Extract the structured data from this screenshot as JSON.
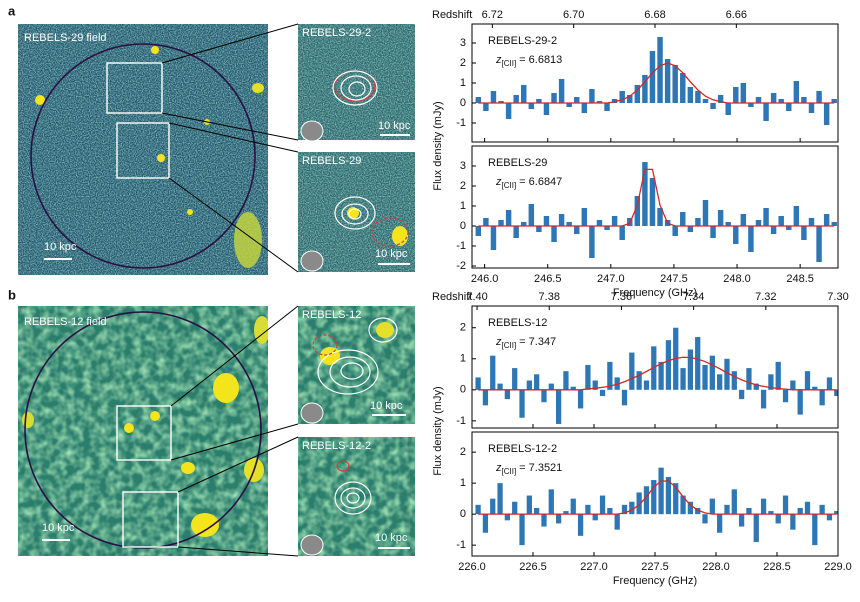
{
  "panels": [
    {
      "label": "a",
      "field": "REBELS-29 field",
      "scale": "10 kpc",
      "insets": [
        {
          "name": "REBELS-29-2",
          "scale": "10 kpc"
        },
        {
          "name": "REBELS-29",
          "scale": "10 kpc"
        }
      ]
    },
    {
      "label": "b",
      "field": "REBELS-12 field",
      "scale": "10 kpc",
      "insets": [
        {
          "name": "REBELS-12",
          "scale": "10 kpc"
        },
        {
          "name": "REBELS-12-2",
          "scale": "10 kpc"
        }
      ]
    }
  ],
  "chart_data": [
    {
      "type": "bar",
      "annotation": "REBELS-29-2",
      "redshift_label": {
        "symbol": "z",
        "subscript": "[CII]",
        "value": "= 6.6813"
      },
      "ylabel": "Flux density (mJy)",
      "x2label": "Redshift",
      "x": [
        245.95,
        246.01,
        246.07,
        246.13,
        246.19,
        246.25,
        246.31,
        246.37,
        246.43,
        246.49,
        246.55,
        246.61,
        246.67,
        246.73,
        246.79,
        246.85,
        246.91,
        246.97,
        247.03,
        247.09,
        247.15,
        247.21,
        247.27,
        247.33,
        247.39,
        247.45,
        247.51,
        247.57,
        247.63,
        247.69,
        247.75,
        247.81,
        247.87,
        247.93,
        247.99,
        248.05,
        248.11,
        248.17,
        248.23,
        248.29,
        248.35,
        248.41,
        248.47,
        248.53,
        248.59,
        248.65,
        248.71,
        248.77
      ],
      "series": [
        {
          "type": "bar",
          "color": "#2f77b4",
          "values": [
            0.3,
            -0.4,
            0.6,
            0.1,
            -0.8,
            0.4,
            0.9,
            -0.3,
            0.2,
            -0.6,
            0.5,
            1.2,
            -0.2,
            0.3,
            -0.5,
            0.7,
            0.1,
            -0.4,
            0.2,
            0.6,
            0.4,
            0.9,
            1.4,
            2.6,
            3.3,
            2.2,
            1.9,
            1.5,
            0.8,
            0.6,
            0.2,
            -0.3,
            0.4,
            -0.6,
            0.8,
            1.0,
            -0.2,
            0.3,
            -0.9,
            0.5,
            0.2,
            -0.4,
            1.1,
            0.3,
            -0.5,
            0.6,
            -1.1,
            0.2
          ]
        },
        {
          "type": "line",
          "color": "#d62728",
          "values": [
            0,
            0,
            0,
            0,
            0,
            0,
            0,
            0,
            0,
            0,
            0,
            0,
            0,
            0,
            0,
            0,
            0,
            0,
            0.06,
            0.16,
            0.34,
            0.65,
            1.06,
            1.51,
            1.86,
            2.0,
            1.86,
            1.51,
            1.06,
            0.65,
            0.34,
            0.16,
            0.06,
            0,
            0,
            0,
            0,
            0,
            0,
            0,
            0,
            0,
            0,
            0,
            0,
            0,
            0,
            0
          ]
        }
      ],
      "xlim": [
        245.9,
        248.8
      ],
      "xticks": [
        246,
        246.5,
        247,
        247.5,
        248,
        248.5
      ],
      "ylim": [
        -1.95,
        3.95
      ],
      "yticks": [
        -1,
        0,
        1,
        2,
        3
      ],
      "x2lim": [
        6.725,
        6.635
      ],
      "x2ticks": [
        6.72,
        {
          "value": 6.7,
          "label": "6.70"
        },
        6.68,
        6.66
      ]
    },
    {
      "type": "bar",
      "annotation": "REBELS-29",
      "redshift_label": {
        "symbol": "z",
        "subscript": "[CII]",
        "value": "= 6.6847"
      },
      "xlabel": "Frequency (GHz)",
      "x": [
        245.95,
        246.01,
        246.07,
        246.13,
        246.19,
        246.25,
        246.31,
        246.37,
        246.43,
        246.49,
        246.55,
        246.61,
        246.67,
        246.73,
        246.79,
        246.85,
        246.91,
        246.97,
        247.03,
        247.09,
        247.15,
        247.21,
        247.27,
        247.33,
        247.39,
        247.45,
        247.51,
        247.57,
        247.63,
        247.69,
        247.75,
        247.81,
        247.87,
        247.93,
        247.99,
        248.05,
        248.11,
        248.17,
        248.23,
        248.29,
        248.35,
        248.41,
        248.47,
        248.53,
        248.59,
        248.65,
        248.71,
        248.77
      ],
      "series": [
        {
          "type": "bar",
          "color": "#2f77b4",
          "values": [
            -0.5,
            0.4,
            -1.2,
            0.3,
            0.8,
            -0.6,
            0.2,
            1.1,
            -0.3,
            0.5,
            -0.8,
            0.6,
            0.2,
            -0.4,
            0.9,
            -1.6,
            0.3,
            -0.2,
            0.5,
            -0.7,
            0.4,
            1.5,
            3.2,
            2.4,
            0.9,
            0.3,
            -0.5,
            0.7,
            -0.3,
            0.4,
            1.3,
            -0.6,
            0.8,
            0.2,
            -0.9,
            0.6,
            -1.3,
            0.3,
            0.9,
            -0.4,
            0.5,
            -0.2,
            1.0,
            -0.7,
            0.4,
            -1.8,
            0.6,
            0.2
          ]
        },
        {
          "type": "line",
          "color": "#d62728",
          "values": [
            0,
            0,
            0,
            0,
            0,
            0,
            0,
            0,
            0,
            0,
            0,
            0,
            0,
            0,
            0,
            0,
            0,
            0,
            0,
            0,
            0.14,
            1.04,
            2.83,
            2.83,
            1.04,
            0.14,
            0,
            0,
            0,
            0,
            0,
            0,
            0,
            0,
            0,
            0,
            0,
            0,
            0,
            0,
            0,
            0,
            0,
            0,
            0,
            0,
            0,
            0
          ]
        }
      ],
      "xlim": [
        245.9,
        248.8
      ],
      "xticks": [
        {
          "value": 246,
          "label": "246.0"
        },
        246.5,
        {
          "value": 247,
          "label": "247.0"
        },
        247.5,
        {
          "value": 248,
          "label": "248.0"
        },
        248.5
      ],
      "ylim": [
        -2.1,
        4.0
      ],
      "yticks": [
        -2,
        -1,
        0,
        1,
        2,
        3
      ]
    },
    {
      "type": "bar",
      "annotation": "REBELS-12",
      "redshift_label": {
        "symbol": "z",
        "subscript": "[CII]",
        "value": "= 7.347"
      },
      "ylabel": "Flux density (mJy)",
      "x2label": "Redshift",
      "x": [
        226.05,
        226.11,
        226.17,
        226.23,
        226.29,
        226.35,
        226.41,
        226.47,
        226.53,
        226.59,
        226.65,
        226.71,
        226.77,
        226.83,
        226.89,
        226.95,
        227.01,
        227.07,
        227.13,
        227.19,
        227.25,
        227.31,
        227.37,
        227.43,
        227.49,
        227.55,
        227.61,
        227.67,
        227.73,
        227.79,
        227.85,
        227.91,
        227.97,
        228.03,
        228.09,
        228.15,
        228.21,
        228.27,
        228.33,
        228.39,
        228.45,
        228.51,
        228.57,
        228.63,
        228.69,
        228.75,
        228.81,
        228.87,
        228.93,
        228.99
      ],
      "series": [
        {
          "type": "bar",
          "color": "#2f77b4",
          "values": [
            0.4,
            -0.5,
            1.1,
            0.2,
            -0.3,
            0.7,
            -0.9,
            0.3,
            0.5,
            -0.4,
            0.2,
            -1.1,
            0.6,
            0.1,
            -0.6,
            0.8,
            0.3,
            -0.2,
            0.9,
            0.4,
            -0.5,
            1.2,
            0.6,
            0.3,
            1.4,
            0.9,
            1.6,
            2.0,
            0.7,
            1.3,
            1.7,
            0.8,
            1.1,
            0.5,
            1.0,
            0.6,
            -0.3,
            0.7,
            0.2,
            -0.6,
            0.5,
            0.9,
            -0.4,
            0.3,
            -0.8,
            0.6,
            0.1,
            -0.5,
            0.4,
            -0.2
          ]
        },
        {
          "type": "line",
          "color": "#d62728",
          "values": [
            0,
            0,
            0,
            0,
            0,
            0,
            0,
            0,
            0,
            0,
            0,
            0,
            0,
            0,
            0,
            0.03,
            0.05,
            0.08,
            0.12,
            0.18,
            0.26,
            0.36,
            0.47,
            0.59,
            0.72,
            0.84,
            0.94,
            1.01,
            1.05,
            1.04,
            0.99,
            0.91,
            0.8,
            0.68,
            0.55,
            0.43,
            0.32,
            0.23,
            0.16,
            0.11,
            0.07,
            0.04,
            0.02,
            0,
            0,
            0,
            0,
            0,
            0,
            0
          ]
        }
      ],
      "xlim": [
        226,
        229
      ],
      "xticks": [
        226,
        226.5,
        227,
        227.5,
        228,
        228.5,
        229
      ],
      "ylim": [
        -1.23,
        2.7
      ],
      "yticks": [
        -1,
        0,
        1,
        2
      ],
      "x2lim": [
        7.4014,
        7.3
      ],
      "x2ticks": [
        {
          "value": 7.4,
          "label": "7.40"
        },
        7.38,
        7.36,
        7.34,
        7.32,
        {
          "value": 7.3,
          "label": "7.30"
        }
      ]
    },
    {
      "type": "bar",
      "annotation": "REBELS-12-2",
      "redshift_label": {
        "symbol": "z",
        "subscript": "[CII]",
        "value": "= 7.3521"
      },
      "xlabel": "Frequency (GHz)",
      "x": [
        226.05,
        226.11,
        226.17,
        226.23,
        226.29,
        226.35,
        226.41,
        226.47,
        226.53,
        226.59,
        226.65,
        226.71,
        226.77,
        226.83,
        226.89,
        226.95,
        227.01,
        227.07,
        227.13,
        227.19,
        227.25,
        227.31,
        227.37,
        227.43,
        227.49,
        227.55,
        227.61,
        227.67,
        227.73,
        227.79,
        227.85,
        227.91,
        227.97,
        228.03,
        228.09,
        228.15,
        228.21,
        228.27,
        228.33,
        228.39,
        228.45,
        228.51,
        228.57,
        228.63,
        228.69,
        228.75,
        228.81,
        228.87,
        228.93,
        228.99
      ],
      "series": [
        {
          "type": "bar",
          "color": "#2f77b4",
          "values": [
            0.3,
            -0.6,
            0.5,
            1.0,
            -0.2,
            0.4,
            -1.0,
            0.6,
            0.2,
            -0.4,
            0.8,
            -0.3,
            0.1,
            0.5,
            -0.7,
            0.3,
            -0.2,
            0.6,
            0.2,
            -0.5,
            0.3,
            0.4,
            0.7,
            0.9,
            1.1,
            1.5,
            1.2,
            1.0,
            0.6,
            0.4,
            0.2,
            -0.3,
            0.5,
            -0.6,
            0.3,
            0.8,
            -0.4,
            0.2,
            -0.9,
            0.5,
            0.1,
            -0.3,
            0.6,
            -0.5,
            0.2,
            0.4,
            -1.0,
            0.3,
            -0.2,
            0.1
          ]
        },
        {
          "type": "line",
          "color": "#d62728",
          "values": [
            0,
            0,
            0,
            0,
            0,
            0,
            0,
            0,
            0,
            0,
            0,
            0,
            0,
            0,
            0,
            0,
            0,
            0,
            0,
            0,
            0.04,
            0.13,
            0.3,
            0.56,
            0.87,
            1.07,
            1.07,
            0.87,
            0.56,
            0.3,
            0.13,
            0.04,
            0,
            0,
            0,
            0,
            0,
            0,
            0,
            0,
            0,
            0,
            0,
            0,
            0,
            0,
            0,
            0,
            0,
            0
          ]
        }
      ],
      "xlim": [
        226,
        229
      ],
      "xticks": [
        {
          "value": 226,
          "label": "226.0"
        },
        226.5,
        {
          "value": 227,
          "label": "227.0"
        },
        227.5,
        {
          "value": 228,
          "label": "228.0"
        },
        228.5,
        {
          "value": 229,
          "label": "229.0"
        }
      ],
      "ylim": [
        -1.35,
        2.65
      ],
      "yticks": [
        -1,
        0,
        1,
        2
      ]
    }
  ]
}
